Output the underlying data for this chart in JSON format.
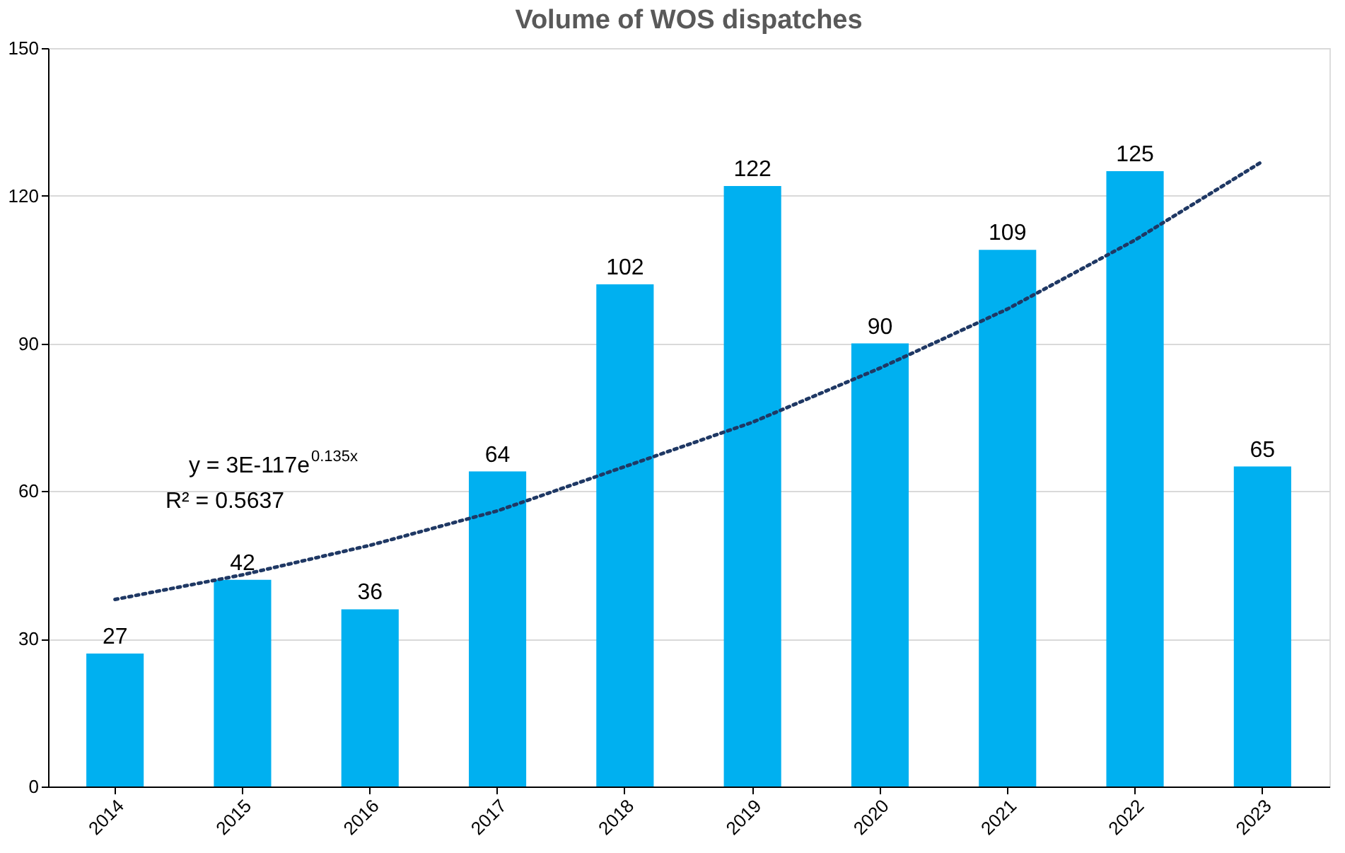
{
  "chart_data": {
    "type": "bar",
    "title": "Volume of WOS dispatches",
    "categories": [
      "2014",
      "2015",
      "2016",
      "2017",
      "2018",
      "2019",
      "2020",
      "2021",
      "2022",
      "2023"
    ],
    "series": [
      {
        "color": "#00b0f0",
        "values": [
          27,
          42,
          36,
          64,
          102,
          122,
          90,
          109,
          125,
          65
        ],
        "value_labels": [
          "27",
          "42",
          "36",
          "64",
          "102",
          "122",
          "90",
          "109",
          "125",
          "65"
        ]
      },
      {
        "type": "line",
        "color": "#1f3864",
        "line_style": "dotted",
        "values": [
          38,
          43,
          49,
          56,
          65,
          74,
          85,
          97,
          111,
          127
        ]
      }
    ],
    "ylim": [
      0,
      150
    ],
    "yticks": [
      0,
      30,
      60,
      90,
      120,
      150
    ],
    "grid": "y",
    "legend": false,
    "annotations": [
      "y = 3E-117e$^{0.135x}$",
      "R² = 0.5637"
    ]
  }
}
